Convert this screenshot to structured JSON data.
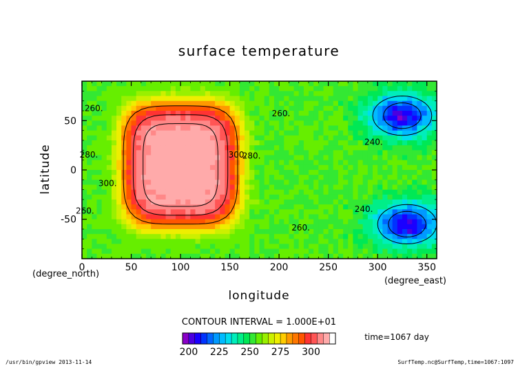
{
  "chart_data": {
    "type": "heatmap",
    "title": "surface temperature",
    "xlabel": "longitude",
    "ylabel": "latitude",
    "x_unit": "(degree_east)",
    "y_unit": "(degree_north)",
    "xlim": [
      0,
      360
    ],
    "ylim": [
      -90,
      90
    ],
    "x_ticks": [
      0,
      50,
      100,
      150,
      200,
      250,
      300,
      350
    ],
    "y_ticks": [
      -50,
      0,
      50
    ],
    "grid": false,
    "contour_interval_text": "CONTOUR INTERVAL = 1.000E+01",
    "time_text": "time=1067 day",
    "colorbar": {
      "levels": [
        195,
        200,
        205,
        210,
        215,
        220,
        225,
        230,
        235,
        240,
        245,
        250,
        255,
        260,
        265,
        270,
        275,
        280,
        285,
        290,
        295,
        300,
        305,
        310,
        315,
        320
      ],
      "tick_labels": [
        200,
        225,
        250,
        275,
        300
      ],
      "colors": [
        "#8a00c8",
        "#4b00e0",
        "#1a00ff",
        "#0033ff",
        "#0066ff",
        "#0099ff",
        "#00bbff",
        "#00ddee",
        "#00eebb",
        "#00ee88",
        "#00e855",
        "#33e833",
        "#66ee00",
        "#99f000",
        "#ccf000",
        "#eeee00",
        "#ffcc00",
        "#ff9900",
        "#ff7700",
        "#ff5500",
        "#ff3333",
        "#ff5555",
        "#ff8888",
        "#ffaaaa"
      ]
    },
    "field": {
      "hot_center": [
        100,
        5
      ],
      "hot_peak": 312,
      "cold_centers": [
        [
          325,
          55
        ],
        [
          330,
          -55
        ]
      ],
      "cold_min": 203,
      "background": 255
    },
    "contour_labels": [
      {
        "text": "260.",
        "lon": 12,
        "lat": 62
      },
      {
        "text": "280.",
        "lon": 7,
        "lat": 15
      },
      {
        "text": "300.",
        "lon": 26,
        "lat": -14
      },
      {
        "text": "260.",
        "lon": 3,
        "lat": -42
      },
      {
        "text": "300.",
        "lon": 158,
        "lat": 15
      },
      {
        "text": "280.",
        "lon": 172,
        "lat": 14
      },
      {
        "text": "260.",
        "lon": 202,
        "lat": 57
      },
      {
        "text": "240.",
        "lon": 296,
        "lat": 28
      },
      {
        "text": "240.",
        "lon": 286,
        "lat": -40
      },
      {
        "text": "260.",
        "lon": 222,
        "lat": -59
      }
    ]
  },
  "footer": {
    "left": "/usr/bin/gpview  2013-11-14",
    "right": "SurfTemp.nc@SurfTemp,time=1067:1097"
  }
}
